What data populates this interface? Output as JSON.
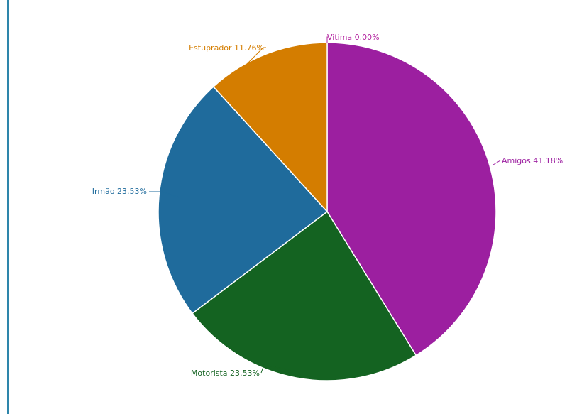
{
  "chart_data": {
    "type": "pie",
    "title": "",
    "series": [
      {
        "values": [
          41.18,
          23.53,
          23.53,
          11.76,
          0.0
        ]
      }
    ],
    "slices": [
      {
        "name": "Amigos",
        "label": "Amigos 41.18%",
        "value": 41.18,
        "color": "#9c1fa0"
      },
      {
        "name": "Motorista",
        "label": "Motorista 23.53%",
        "value": 23.53,
        "color": "#146321"
      },
      {
        "name": "Irmão",
        "label": "Irmão 23.53%",
        "value": 23.53,
        "color": "#1f6b9c"
      },
      {
        "name": "Estuprador",
        "label": "Estuprador 11.76%",
        "value": 11.76,
        "color": "#d47d00"
      },
      {
        "name": "Vitima",
        "label": "Vitima 0.00%",
        "value": 0.0,
        "color": "#b3229f"
      }
    ],
    "start_angle_deg": 0,
    "direction": "clockwise",
    "labels_position": "outside"
  },
  "colors": {
    "frame_accent": "#2e86ab",
    "background": "#ffffff"
  }
}
